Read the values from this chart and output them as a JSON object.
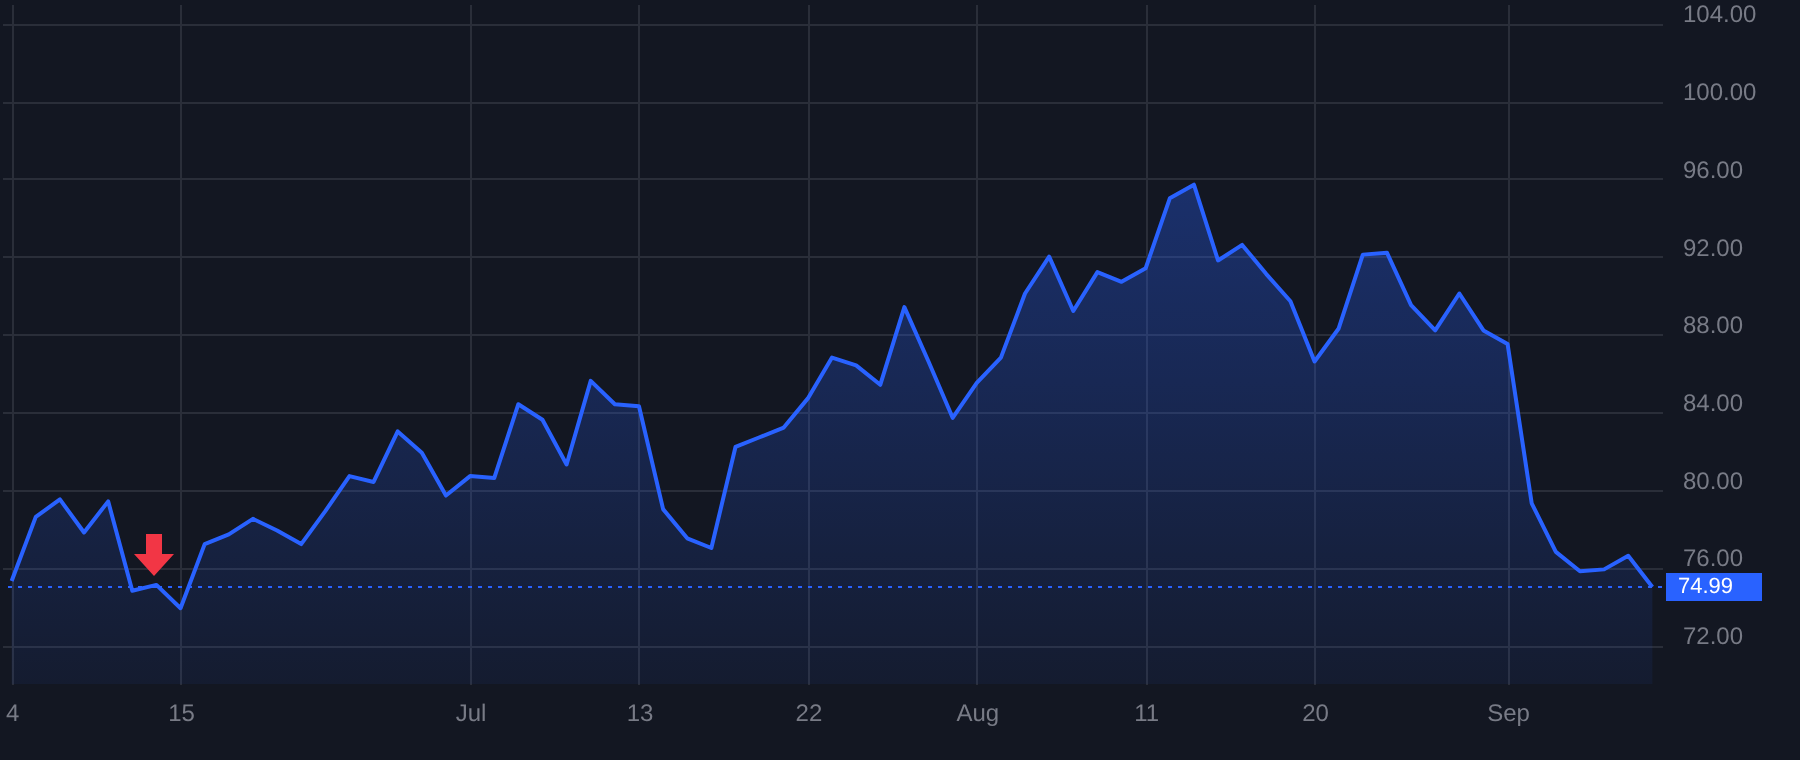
{
  "chart_data": {
    "type": "area",
    "categories": [
      "4",
      null,
      null,
      null,
      null,
      null,
      null,
      "15",
      null,
      null,
      null,
      null,
      null,
      null,
      null,
      null,
      null,
      null,
      null,
      "Jul",
      null,
      null,
      null,
      null,
      null,
      null,
      "13",
      null,
      null,
      null,
      null,
      null,
      null,
      "22",
      null,
      null,
      null,
      null,
      null,
      null,
      "Aug",
      null,
      null,
      null,
      null,
      null,
      null,
      "11",
      null,
      null,
      null,
      null,
      null,
      null,
      "20",
      null,
      null,
      null,
      null,
      null,
      null,
      null,
      "Sep",
      null,
      null,
      null,
      null,
      null,
      null
    ],
    "series": [
      {
        "color": "#2962ff",
        "values": [
          75.3,
          78.6,
          79.5,
          77.8,
          79.4,
          74.8,
          75.1,
          73.9,
          77.2,
          77.7,
          78.5,
          77.9,
          77.2,
          78.9,
          80.7,
          80.4,
          83.0,
          81.9,
          79.7,
          80.7,
          80.6,
          84.4,
          83.6,
          81.3,
          85.6,
          84.4,
          84.3,
          79.0,
          77.5,
          77.0,
          82.2,
          82.7,
          83.2,
          84.7,
          86.8,
          86.4,
          85.4,
          89.4,
          86.6,
          83.7,
          85.5,
          86.8,
          90.1,
          92.0,
          89.2,
          91.2,
          90.7,
          91.4,
          95.0,
          95.7,
          91.8,
          92.6,
          91.1,
          89.7,
          86.6,
          88.3,
          92.1,
          92.2,
          89.5,
          88.2,
          90.1,
          88.2,
          87.5,
          79.3,
          76.8,
          75.8,
          75.9,
          76.6,
          74.99
        ]
      }
    ],
    "ylim": [
      70,
      105
    ],
    "yticks": [
      {
        "value": 72,
        "label": "72.00"
      },
      {
        "value": 76,
        "label": "76.00"
      },
      {
        "value": 80,
        "label": "80.00"
      },
      {
        "value": 84,
        "label": "84.00"
      },
      {
        "value": 88,
        "label": "88.00"
      },
      {
        "value": 92,
        "label": "92.00"
      },
      {
        "value": 96,
        "label": "96.00"
      },
      {
        "value": 100,
        "label": "100.00"
      },
      {
        "value": 104,
        "label": "104.00"
      }
    ],
    "ref_lines": [
      {
        "axis": "y",
        "value": 74.99,
        "label": "74.99",
        "color": "#2962ff",
        "line_style": "dotted"
      }
    ],
    "grid": true
  }
}
